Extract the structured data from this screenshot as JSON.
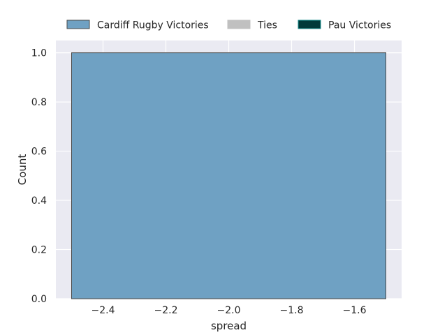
{
  "chart_data": {
    "type": "bar",
    "xlabel": "spread",
    "ylabel": "Count",
    "xlim": [
      -2.55,
      -1.45
    ],
    "ylim": [
      0,
      1.05
    ],
    "xticks": [
      -2.4,
      -2.2,
      -2.0,
      -1.8,
      -1.6
    ],
    "xtick_labels": [
      "−2.4",
      "−2.2",
      "−2.0",
      "−1.8",
      "−1.6"
    ],
    "yticks": [
      0.0,
      0.2,
      0.4,
      0.6,
      0.8,
      1.0
    ],
    "ytick_labels": [
      "0.0",
      "0.2",
      "0.4",
      "0.6",
      "0.8",
      "1.0"
    ],
    "grid": true,
    "legend_position": "top",
    "legend": [
      {
        "label": "Cardiff Rugby Victories",
        "color": "#6fa1c3",
        "edge": "#4a4a4a"
      },
      {
        "label": "Ties",
        "color": "#c0c0c0",
        "edge": "#c0c0c0"
      },
      {
        "label": "Pau Victories",
        "color": "#003a3a",
        "edge": "#1a8f8f"
      }
    ],
    "bins": [
      {
        "x_start": -2.5,
        "x_end": -1.5,
        "value": 1,
        "series": "Cardiff Rugby Victories"
      }
    ]
  }
}
